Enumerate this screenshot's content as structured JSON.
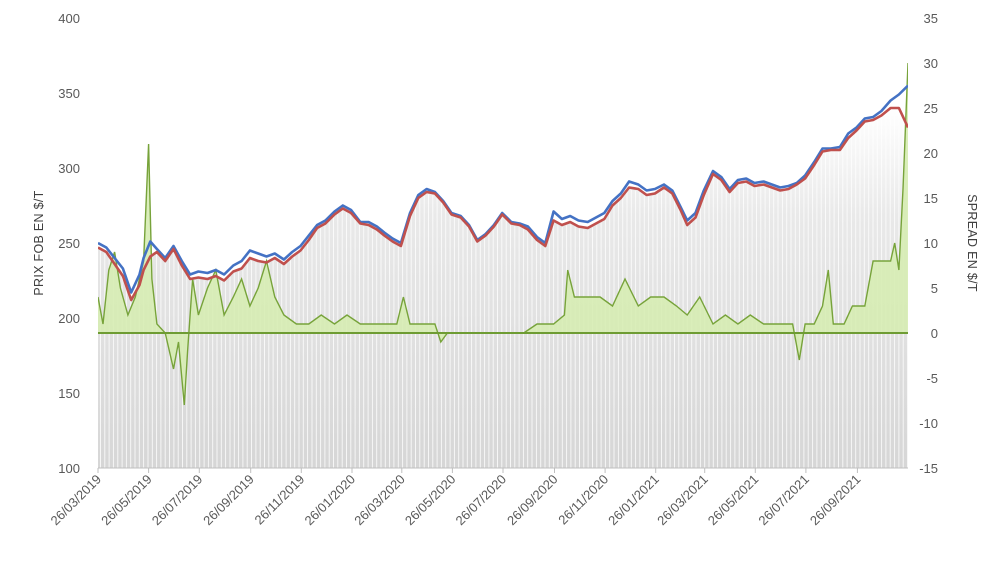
{
  "chart_data": {
    "type": "line",
    "ylabel": "PRIX FOB EN $/T",
    "y2label": "SPREAD EN $/T",
    "ylim": [
      100,
      400
    ],
    "y2lim": [
      -15,
      35
    ],
    "yticks": [
      100,
      150,
      200,
      250,
      300,
      350,
      400
    ],
    "y2ticks": [
      -15,
      -10,
      -5,
      0,
      5,
      10,
      15,
      20,
      25,
      30,
      35
    ],
    "x_range": [
      "2019-03-26",
      "2021-11-26"
    ],
    "xticks": [
      "26/03/2019",
      "26/05/2019",
      "26/07/2019",
      "26/09/2019",
      "26/11/2019",
      "26/01/2020",
      "26/03/2020",
      "26/05/2020",
      "26/07/2020",
      "26/09/2020",
      "26/11/2020",
      "26/01/2021",
      "26/03/2021",
      "26/05/2021",
      "26/07/2021",
      "26/09/2021"
    ],
    "grid": false,
    "legend": "none",
    "colors": {
      "price_a": "#4472c4",
      "price_b": "#c0504d",
      "spread_line": "#77a33a",
      "spread_fill": "#d6ecb2",
      "price_area": "#d9d9d9",
      "zero_line": "#6e9c33"
    },
    "series": [
      {
        "axis": "left",
        "color": "#4472c4",
        "points": [
          [
            "2019-03-26",
            250
          ],
          [
            "2019-04-05",
            247
          ],
          [
            "2019-04-15",
            240
          ],
          [
            "2019-04-25",
            233
          ],
          [
            "2019-05-05",
            217
          ],
          [
            "2019-05-15",
            229
          ],
          [
            "2019-05-20",
            240
          ],
          [
            "2019-05-28",
            251
          ],
          [
            "2019-06-05",
            246
          ],
          [
            "2019-06-15",
            240
          ],
          [
            "2019-06-25",
            248
          ],
          [
            "2019-07-05",
            238
          ],
          [
            "2019-07-15",
            229
          ],
          [
            "2019-07-25",
            231
          ],
          [
            "2019-08-05",
            230
          ],
          [
            "2019-08-15",
            232
          ],
          [
            "2019-08-25",
            229
          ],
          [
            "2019-09-05",
            235
          ],
          [
            "2019-09-15",
            238
          ],
          [
            "2019-09-25",
            245
          ],
          [
            "2019-10-05",
            243
          ],
          [
            "2019-10-15",
            241
          ],
          [
            "2019-10-25",
            243
          ],
          [
            "2019-11-05",
            239
          ],
          [
            "2019-11-15",
            244
          ],
          [
            "2019-11-25",
            248
          ],
          [
            "2019-12-05",
            255
          ],
          [
            "2019-12-15",
            262
          ],
          [
            "2019-12-25",
            265
          ],
          [
            "2020-01-05",
            271
          ],
          [
            "2020-01-15",
            275
          ],
          [
            "2020-01-25",
            272
          ],
          [
            "2020-02-05",
            264
          ],
          [
            "2020-02-15",
            264
          ],
          [
            "2020-02-25",
            261
          ],
          [
            "2020-03-05",
            257
          ],
          [
            "2020-03-15",
            253
          ],
          [
            "2020-03-25",
            250
          ],
          [
            "2020-04-05",
            270
          ],
          [
            "2020-04-15",
            282
          ],
          [
            "2020-04-25",
            286
          ],
          [
            "2020-05-05",
            284
          ],
          [
            "2020-05-15",
            278
          ],
          [
            "2020-05-25",
            270
          ],
          [
            "2020-06-05",
            268
          ],
          [
            "2020-06-15",
            262
          ],
          [
            "2020-06-25",
            252
          ],
          [
            "2020-07-05",
            256
          ],
          [
            "2020-07-15",
            262
          ],
          [
            "2020-07-25",
            270
          ],
          [
            "2020-08-05",
            264
          ],
          [
            "2020-08-15",
            263
          ],
          [
            "2020-08-25",
            261
          ],
          [
            "2020-09-05",
            254
          ],
          [
            "2020-09-15",
            250
          ],
          [
            "2020-09-25",
            271
          ],
          [
            "2020-10-05",
            266
          ],
          [
            "2020-10-15",
            268
          ],
          [
            "2020-10-25",
            265
          ],
          [
            "2020-11-05",
            264
          ],
          [
            "2020-11-15",
            267
          ],
          [
            "2020-11-25",
            270
          ],
          [
            "2020-12-05",
            278
          ],
          [
            "2020-12-15",
            283
          ],
          [
            "2020-12-25",
            291
          ],
          [
            "2021-01-05",
            289
          ],
          [
            "2021-01-15",
            285
          ],
          [
            "2021-01-25",
            286
          ],
          [
            "2021-02-05",
            289
          ],
          [
            "2021-02-15",
            285
          ],
          [
            "2021-02-25",
            274
          ],
          [
            "2021-03-05",
            265
          ],
          [
            "2021-03-15",
            270
          ],
          [
            "2021-03-25",
            285
          ],
          [
            "2021-04-05",
            298
          ],
          [
            "2021-04-15",
            294
          ],
          [
            "2021-04-25",
            286
          ],
          [
            "2021-05-05",
            292
          ],
          [
            "2021-05-15",
            293
          ],
          [
            "2021-05-25",
            290
          ],
          [
            "2021-06-05",
            291
          ],
          [
            "2021-06-15",
            289
          ],
          [
            "2021-06-25",
            287
          ],
          [
            "2021-07-05",
            288
          ],
          [
            "2021-07-15",
            290
          ],
          [
            "2021-07-25",
            295
          ],
          [
            "2021-08-05",
            304
          ],
          [
            "2021-08-15",
            313
          ],
          [
            "2021-08-25",
            313
          ],
          [
            "2021-09-05",
            314
          ],
          [
            "2021-09-15",
            323
          ],
          [
            "2021-09-25",
            327
          ],
          [
            "2021-10-05",
            333
          ],
          [
            "2021-10-15",
            334
          ],
          [
            "2021-10-25",
            338
          ],
          [
            "2021-11-05",
            345
          ],
          [
            "2021-11-15",
            349
          ],
          [
            "2021-11-26",
            355
          ]
        ]
      },
      {
        "axis": "left",
        "color": "#c0504d",
        "points": [
          [
            "2019-03-26",
            247
          ],
          [
            "2019-04-05",
            244
          ],
          [
            "2019-04-15",
            236
          ],
          [
            "2019-04-25",
            228
          ],
          [
            "2019-05-05",
            212
          ],
          [
            "2019-05-15",
            222
          ],
          [
            "2019-05-20",
            232
          ],
          [
            "2019-05-28",
            241
          ],
          [
            "2019-06-05",
            244
          ],
          [
            "2019-06-15",
            238
          ],
          [
            "2019-06-25",
            246
          ],
          [
            "2019-07-05",
            235
          ],
          [
            "2019-07-15",
            226
          ],
          [
            "2019-07-25",
            227
          ],
          [
            "2019-08-05",
            226
          ],
          [
            "2019-08-15",
            228
          ],
          [
            "2019-08-25",
            225
          ],
          [
            "2019-09-05",
            231
          ],
          [
            "2019-09-15",
            233
          ],
          [
            "2019-09-25",
            240
          ],
          [
            "2019-10-05",
            238
          ],
          [
            "2019-10-15",
            237
          ],
          [
            "2019-10-25",
            240
          ],
          [
            "2019-11-05",
            236
          ],
          [
            "2019-11-15",
            241
          ],
          [
            "2019-11-25",
            245
          ],
          [
            "2019-12-05",
            252
          ],
          [
            "2019-12-15",
            260
          ],
          [
            "2019-12-25",
            263
          ],
          [
            "2020-01-05",
            269
          ],
          [
            "2020-01-15",
            273
          ],
          [
            "2020-01-25",
            270
          ],
          [
            "2020-02-05",
            263
          ],
          [
            "2020-02-15",
            262
          ],
          [
            "2020-02-25",
            259
          ],
          [
            "2020-03-05",
            255
          ],
          [
            "2020-03-15",
            251
          ],
          [
            "2020-03-25",
            248
          ],
          [
            "2020-04-05",
            268
          ],
          [
            "2020-04-15",
            280
          ],
          [
            "2020-04-25",
            284
          ],
          [
            "2020-05-05",
            283
          ],
          [
            "2020-05-15",
            277
          ],
          [
            "2020-05-25",
            269
          ],
          [
            "2020-06-05",
            267
          ],
          [
            "2020-06-15",
            261
          ],
          [
            "2020-06-25",
            251
          ],
          [
            "2020-07-05",
            255
          ],
          [
            "2020-07-15",
            261
          ],
          [
            "2020-07-25",
            269
          ],
          [
            "2020-08-05",
            263
          ],
          [
            "2020-08-15",
            262
          ],
          [
            "2020-08-25",
            259
          ],
          [
            "2020-09-05",
            252
          ],
          [
            "2020-09-15",
            248
          ],
          [
            "2020-09-25",
            265
          ],
          [
            "2020-10-05",
            262
          ],
          [
            "2020-10-15",
            264
          ],
          [
            "2020-10-25",
            261
          ],
          [
            "2020-11-05",
            260
          ],
          [
            "2020-11-15",
            263
          ],
          [
            "2020-11-25",
            266
          ],
          [
            "2020-12-05",
            275
          ],
          [
            "2020-12-15",
            280
          ],
          [
            "2020-12-25",
            287
          ],
          [
            "2021-01-05",
            286
          ],
          [
            "2021-01-15",
            282
          ],
          [
            "2021-01-25",
            283
          ],
          [
            "2021-02-05",
            287
          ],
          [
            "2021-02-15",
            283
          ],
          [
            "2021-02-25",
            272
          ],
          [
            "2021-03-05",
            262
          ],
          [
            "2021-03-15",
            267
          ],
          [
            "2021-03-25",
            282
          ],
          [
            "2021-04-05",
            296
          ],
          [
            "2021-04-15",
            292
          ],
          [
            "2021-04-25",
            284
          ],
          [
            "2021-05-05",
            290
          ],
          [
            "2021-05-15",
            291
          ],
          [
            "2021-05-25",
            288
          ],
          [
            "2021-06-05",
            289
          ],
          [
            "2021-06-15",
            287
          ],
          [
            "2021-06-25",
            285
          ],
          [
            "2021-07-05",
            286
          ],
          [
            "2021-07-15",
            289
          ],
          [
            "2021-07-25",
            293
          ],
          [
            "2021-08-05",
            302
          ],
          [
            "2021-08-15",
            311
          ],
          [
            "2021-08-25",
            312
          ],
          [
            "2021-09-05",
            312
          ],
          [
            "2021-09-15",
            320
          ],
          [
            "2021-09-25",
            325
          ],
          [
            "2021-10-05",
            331
          ],
          [
            "2021-10-15",
            332
          ],
          [
            "2021-10-25",
            335
          ],
          [
            "2021-11-05",
            340
          ],
          [
            "2021-11-15",
            340
          ],
          [
            "2021-11-26",
            327
          ]
        ]
      },
      {
        "axis": "right",
        "type": "area",
        "color": "#77a33a",
        "points": [
          [
            "2019-03-26",
            4
          ],
          [
            "2019-04-01",
            1
          ],
          [
            "2019-04-08",
            7
          ],
          [
            "2019-04-15",
            9
          ],
          [
            "2019-04-22",
            5
          ],
          [
            "2019-05-01",
            2
          ],
          [
            "2019-05-10",
            4
          ],
          [
            "2019-05-20",
            8
          ],
          [
            "2019-05-26",
            21
          ],
          [
            "2019-05-30",
            6
          ],
          [
            "2019-06-05",
            1
          ],
          [
            "2019-06-15",
            0
          ],
          [
            "2019-06-25",
            -4
          ],
          [
            "2019-07-01",
            -1
          ],
          [
            "2019-07-08",
            -8
          ],
          [
            "2019-07-12",
            -2
          ],
          [
            "2019-07-18",
            6
          ],
          [
            "2019-07-25",
            2
          ],
          [
            "2019-08-05",
            5
          ],
          [
            "2019-08-15",
            7
          ],
          [
            "2019-08-25",
            2
          ],
          [
            "2019-09-05",
            4
          ],
          [
            "2019-09-15",
            6
          ],
          [
            "2019-09-25",
            3
          ],
          [
            "2019-10-05",
            5
          ],
          [
            "2019-10-15",
            8
          ],
          [
            "2019-10-25",
            4
          ],
          [
            "2019-11-05",
            2
          ],
          [
            "2019-11-20",
            1
          ],
          [
            "2019-12-05",
            1
          ],
          [
            "2019-12-20",
            2
          ],
          [
            "2020-01-05",
            1
          ],
          [
            "2020-01-20",
            2
          ],
          [
            "2020-02-05",
            1
          ],
          [
            "2020-02-20",
            1
          ],
          [
            "2020-03-05",
            1
          ],
          [
            "2020-03-20",
            1
          ],
          [
            "2020-03-28",
            4
          ],
          [
            "2020-04-05",
            1
          ],
          [
            "2020-04-20",
            1
          ],
          [
            "2020-05-05",
            1
          ],
          [
            "2020-05-12",
            -1
          ],
          [
            "2020-05-20",
            0
          ],
          [
            "2020-06-20",
            0
          ],
          [
            "2020-08-20",
            0
          ],
          [
            "2020-09-05",
            1
          ],
          [
            "2020-09-25",
            1
          ],
          [
            "2020-10-08",
            2
          ],
          [
            "2020-10-12",
            7
          ],
          [
            "2020-10-20",
            4
          ],
          [
            "2020-11-05",
            4
          ],
          [
            "2020-11-20",
            4
          ],
          [
            "2020-12-05",
            3
          ],
          [
            "2020-12-20",
            6
          ],
          [
            "2021-01-05",
            3
          ],
          [
            "2021-01-20",
            4
          ],
          [
            "2021-02-05",
            4
          ],
          [
            "2021-02-20",
            3
          ],
          [
            "2021-03-05",
            2
          ],
          [
            "2021-03-20",
            4
          ],
          [
            "2021-04-05",
            1
          ],
          [
            "2021-04-20",
            2
          ],
          [
            "2021-05-05",
            1
          ],
          [
            "2021-05-20",
            2
          ],
          [
            "2021-06-05",
            1
          ],
          [
            "2021-06-20",
            1
          ],
          [
            "2021-07-10",
            1
          ],
          [
            "2021-07-18",
            -3
          ],
          [
            "2021-07-25",
            1
          ],
          [
            "2021-08-05",
            1
          ],
          [
            "2021-08-15",
            3
          ],
          [
            "2021-08-22",
            7
          ],
          [
            "2021-08-28",
            1
          ],
          [
            "2021-09-10",
            1
          ],
          [
            "2021-09-20",
            3
          ],
          [
            "2021-10-05",
            3
          ],
          [
            "2021-10-15",
            8
          ],
          [
            "2021-10-25",
            8
          ],
          [
            "2021-11-05",
            8
          ],
          [
            "2021-11-10",
            10
          ],
          [
            "2021-11-15",
            7
          ],
          [
            "2021-11-20",
            16
          ],
          [
            "2021-11-26",
            30
          ]
        ]
      }
    ]
  }
}
